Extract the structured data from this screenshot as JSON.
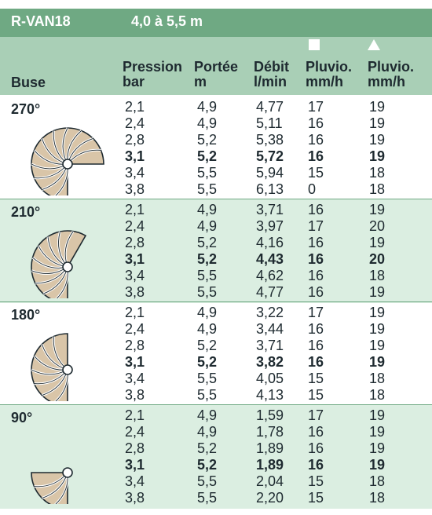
{
  "title": {
    "name": "R-VAN18",
    "range": "4,0 à 5,5 m"
  },
  "header": {
    "buse": "Buse",
    "pression": [
      "Pression",
      "bar"
    ],
    "portee": [
      "Portée",
      "m"
    ],
    "debit": [
      "Débit",
      "l/min"
    ],
    "pluvio_square": [
      "Pluvio.",
      "mm/h"
    ],
    "pluvio_triangle": [
      "Pluvio.",
      "mm/h"
    ],
    "icons": {
      "square": "square-icon",
      "triangle": "triangle-icon"
    }
  },
  "colors": {
    "title_bg": "#6fa983",
    "header_bg": "#a9cfb6",
    "alt_row_bg": "#dbeee1",
    "nozzle_fill": "#d9c5a8"
  },
  "sections": [
    {
      "angle": "270°",
      "sweep_degrees": 270,
      "icon": "nozzle-270-icon",
      "rows": [
        {
          "p": "2,1",
          "r": "4,9",
          "d": "4,77",
          "s": "17",
          "t": "19",
          "bold": false
        },
        {
          "p": "2,4",
          "r": "4,9",
          "d": "5,11",
          "s": "16",
          "t": "19",
          "bold": false
        },
        {
          "p": "2,8",
          "r": "5,2",
          "d": "5,38",
          "s": "16",
          "t": "19",
          "bold": false
        },
        {
          "p": "3,1",
          "r": "5,2",
          "d": "5,72",
          "s": "16",
          "t": "19",
          "bold": true
        },
        {
          "p": "3,4",
          "r": "5,5",
          "d": "5,94",
          "s": "15",
          "t": "18",
          "bold": false
        },
        {
          "p": "3,8",
          "r": "5,5",
          "d": "6,13",
          "s": "0",
          "t": "18",
          "bold": false
        }
      ]
    },
    {
      "angle": "210°",
      "sweep_degrees": 210,
      "icon": "nozzle-210-icon",
      "rows": [
        {
          "p": "2,1",
          "r": "4,9",
          "d": "3,71",
          "s": "16",
          "t": "19",
          "bold": false
        },
        {
          "p": "2,4",
          "r": "4,9",
          "d": "3,97",
          "s": "17",
          "t": "20",
          "bold": false
        },
        {
          "p": "2,8",
          "r": "5,2",
          "d": "4,16",
          "s": "16",
          "t": "19",
          "bold": false
        },
        {
          "p": "3,1",
          "r": "5,2",
          "d": "4,43",
          "s": "16",
          "t": "20",
          "bold": true
        },
        {
          "p": "3,4",
          "r": "5,5",
          "d": "4,62",
          "s": "16",
          "t": "18",
          "bold": false
        },
        {
          "p": "3,8",
          "r": "5,5",
          "d": "4,77",
          "s": "16",
          "t": "19",
          "bold": false
        }
      ]
    },
    {
      "angle": "180°",
      "sweep_degrees": 180,
      "icon": "nozzle-180-icon",
      "rows": [
        {
          "p": "2,1",
          "r": "4,9",
          "d": "3,22",
          "s": "17",
          "t": "19",
          "bold": false
        },
        {
          "p": "2,4",
          "r": "4,9",
          "d": "3,44",
          "s": "16",
          "t": "19",
          "bold": false
        },
        {
          "p": "2,8",
          "r": "5,2",
          "d": "3,71",
          "s": "16",
          "t": "19",
          "bold": false
        },
        {
          "p": "3,1",
          "r": "5,2",
          "d": "3,82",
          "s": "16",
          "t": "19",
          "bold": true
        },
        {
          "p": "3,4",
          "r": "5,5",
          "d": "4,05",
          "s": "15",
          "t": "18",
          "bold": false
        },
        {
          "p": "3,8",
          "r": "5,5",
          "d": "4,13",
          "s": "15",
          "t": "18",
          "bold": false
        }
      ]
    },
    {
      "angle": "90°",
      "sweep_degrees": 90,
      "icon": "nozzle-90-icon",
      "rows": [
        {
          "p": "2,1",
          "r": "4,9",
          "d": "1,59",
          "s": "17",
          "t": "19",
          "bold": false
        },
        {
          "p": "2,4",
          "r": "4,9",
          "d": "1,78",
          "s": "16",
          "t": "19",
          "bold": false
        },
        {
          "p": "2,8",
          "r": "5,2",
          "d": "1,89",
          "s": "16",
          "t": "19",
          "bold": false
        },
        {
          "p": "3,1",
          "r": "5,2",
          "d": "1,89",
          "s": "16",
          "t": "19",
          "bold": true
        },
        {
          "p": "3,4",
          "r": "5,5",
          "d": "2,04",
          "s": "15",
          "t": "18",
          "bold": false
        },
        {
          "p": "3,8",
          "r": "5,5",
          "d": "2,20",
          "s": "15",
          "t": "18",
          "bold": false
        }
      ]
    }
  ]
}
